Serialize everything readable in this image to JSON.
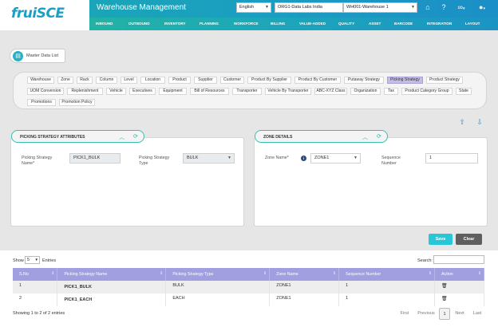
{
  "header": {
    "logo": "fruiSCE",
    "app_title": "Warehouse Management",
    "language": "English",
    "org": "ORG1-Data Labs India",
    "warehouse": "WH001-Warehouse 1",
    "icons": [
      "home-icon",
      "help-icon",
      "link-icon",
      "user-icon"
    ]
  },
  "nav": [
    "INBOUND",
    "OUTBOUND",
    "INVENTORY",
    "PLANNING",
    "WORKFORCE",
    "BILLING",
    "VALUE-ADDED",
    "QUALITY",
    "ASSET",
    "BARCODE",
    "INTEGRATION",
    "LAYOUT"
  ],
  "breadcrumb": {
    "label": "Master Data List"
  },
  "tabs": {
    "row1": [
      "Warehouse",
      "Zone",
      "Rack",
      "Column",
      "Level",
      "Location",
      "Product",
      "Supplier",
      "Customer",
      "Product By Supplier",
      "Product By Customer",
      "Putaway Strategy",
      "Picking Strategy",
      "Product Strategy"
    ],
    "row2": [
      "UOM Conversion",
      "Replenishment",
      "Vehicle",
      "Executives",
      "Equipment",
      "Bill of Resources",
      "Transporter",
      "Vehicle By Transporter",
      "ABC-XYZ Class",
      "Organization",
      "Tax",
      "Product Category Group",
      "State"
    ],
    "row3": [
      "Promotions",
      "Promotion Policy"
    ],
    "active": "Picking Strategy"
  },
  "attributes": {
    "title": "PICKING STRATEGY ATTRIBUTES",
    "name_label_1": "Picking Strategy",
    "name_label_2": "Name*",
    "name_value": "PICK1_BULK",
    "type_label_1": "Picking Strategy",
    "type_label_2": "Type",
    "type_value": "BULK"
  },
  "zone": {
    "title": "ZONE DETAILS",
    "zone_label": "Zone Name*",
    "zone_value": "ZONE1",
    "seq_label_1": "Sequence",
    "seq_label_2": "Number",
    "seq_value": "1"
  },
  "buttons": {
    "save": "Save",
    "clear": "Clear"
  },
  "table": {
    "show": "Show",
    "page_size": "5",
    "entries": "Entries",
    "search_label": "Search:",
    "columns": [
      "S.No",
      "Picking Strategy Name",
      "Picking Strategy Type",
      "Zone Name",
      "Sequence Number",
      "Action"
    ],
    "rows": [
      {
        "sno": "1",
        "name": "PICK1_BULK",
        "type": "BULK",
        "zone": "ZONE1",
        "seq": "1"
      },
      {
        "sno": "2",
        "name": "PICK1_EACH",
        "type": "EACH",
        "zone": "ZONE1",
        "seq": "1"
      }
    ],
    "info": "Showing 1 to 2 of 2 entries",
    "pagination": {
      "first": "First",
      "previous": "Previous",
      "current": "1",
      "next": "Next",
      "last": "Last"
    }
  }
}
